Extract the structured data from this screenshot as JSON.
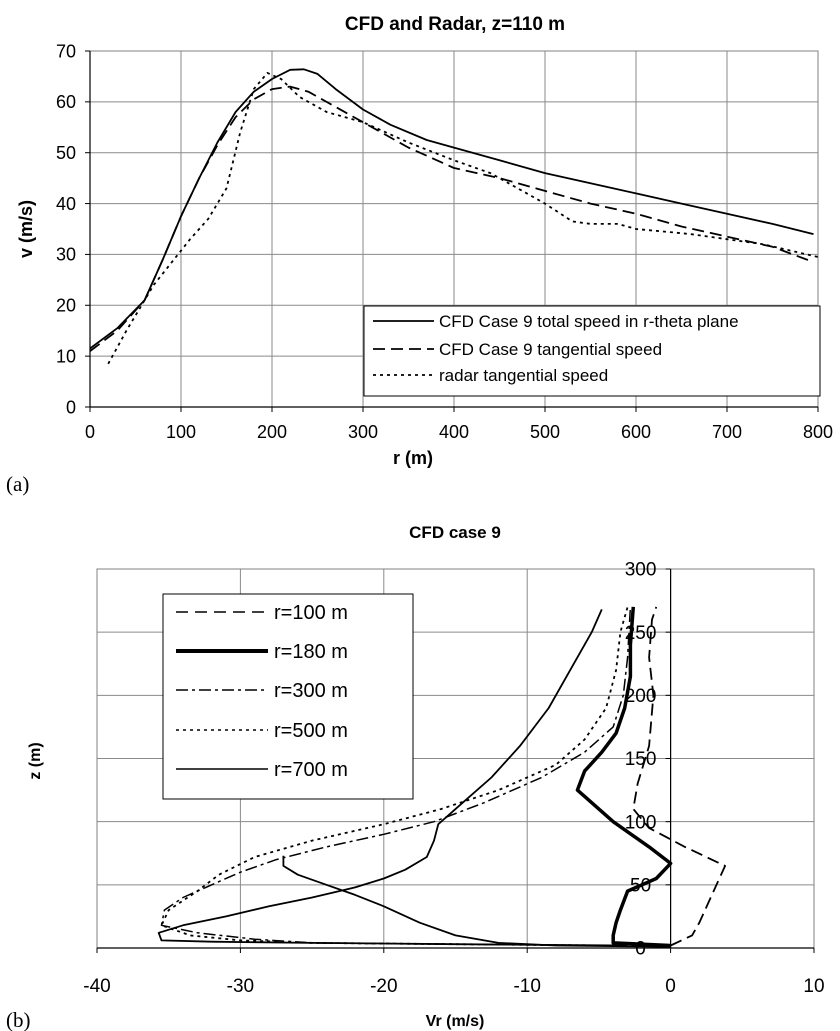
{
  "chart_data": [
    {
      "panel_label": "(a)",
      "type": "line",
      "title": "CFD and Radar, z=110 m",
      "xlabel": "r (m)",
      "ylabel": "v (m/s)",
      "xlim": [
        0,
        800
      ],
      "ylim": [
        0,
        70
      ],
      "xticks": [
        0,
        100,
        200,
        300,
        400,
        500,
        600,
        700,
        800
      ],
      "yticks": [
        0,
        10,
        20,
        30,
        40,
        50,
        60,
        70
      ],
      "grid": true,
      "legend_position": "bottom-right",
      "series": [
        {
          "name": "CFD Case 9 total speed in r-theta plane",
          "style": "solid",
          "points": [
            [
              0,
              11.5
            ],
            [
              30,
              15.5
            ],
            [
              60,
              21
            ],
            [
              80,
              29
            ],
            [
              100,
              37.5
            ],
            [
              120,
              45
            ],
            [
              140,
              52
            ],
            [
              160,
              58
            ],
            [
              180,
              62
            ],
            [
              200,
              64.5
            ],
            [
              220,
              66.3
            ],
            [
              235,
              66.4
            ],
            [
              250,
              65.5
            ],
            [
              270,
              62.5
            ],
            [
              300,
              58.5
            ],
            [
              330,
              55.5
            ],
            [
              370,
              52.5
            ],
            [
              400,
              51
            ],
            [
              450,
              48.5
            ],
            [
              500,
              46
            ],
            [
              550,
              44
            ],
            [
              600,
              42
            ],
            [
              650,
              40
            ],
            [
              700,
              38
            ],
            [
              750,
              36
            ],
            [
              795,
              34
            ]
          ]
        },
        {
          "name": "CFD Case 9 tangential speed",
          "style": "dashed",
          "points": [
            [
              0,
              11
            ],
            [
              30,
              15
            ],
            [
              60,
              21
            ],
            [
              80,
              29
            ],
            [
              100,
              37.5
            ],
            [
              120,
              45
            ],
            [
              140,
              51.5
            ],
            [
              160,
              57
            ],
            [
              180,
              60.5
            ],
            [
              200,
              62.5
            ],
            [
              220,
              63
            ],
            [
              240,
              62
            ],
            [
              260,
              60
            ],
            [
              300,
              56
            ],
            [
              350,
              51
            ],
            [
              400,
              47
            ],
            [
              450,
              45
            ],
            [
              500,
              42.5
            ],
            [
              550,
              40
            ],
            [
              600,
              38
            ],
            [
              650,
              35.5
            ],
            [
              700,
              33.5
            ],
            [
              750,
              31.5
            ],
            [
              795,
              28.5
            ]
          ]
        },
        {
          "name": "radar tangential speed",
          "style": "dotted",
          "points": [
            [
              20,
              8.5
            ],
            [
              40,
              15
            ],
            [
              55,
              19.5
            ],
            [
              70,
              24
            ],
            [
              90,
              28.5
            ],
            [
              110,
              33
            ],
            [
              130,
              37
            ],
            [
              150,
              43
            ],
            [
              165,
              54
            ],
            [
              180,
              62.5
            ],
            [
              195,
              65.7
            ],
            [
              210,
              64.5
            ],
            [
              230,
              61
            ],
            [
              260,
              58
            ],
            [
              300,
              56
            ],
            [
              350,
              52
            ],
            [
              400,
              48.5
            ],
            [
              440,
              46
            ],
            [
              470,
              43
            ],
            [
              500,
              40
            ],
            [
              530,
              36.5
            ],
            [
              550,
              36
            ],
            [
              580,
              36
            ],
            [
              600,
              35
            ],
            [
              630,
              34.5
            ],
            [
              660,
              34
            ],
            [
              700,
              33
            ],
            [
              740,
              32
            ],
            [
              800,
              29.5
            ]
          ]
        }
      ]
    },
    {
      "panel_label": "(b)",
      "type": "line",
      "title": "CFD case 9",
      "xlabel": "Vr (m/s)",
      "ylabel": "z (m)",
      "xlim": [
        -40,
        10
      ],
      "ylim": [
        0,
        300
      ],
      "xticks": [
        -40,
        -30,
        -20,
        -10,
        0,
        10
      ],
      "yticks": [
        0,
        50,
        100,
        150,
        200,
        250,
        300
      ],
      "grid": true,
      "legend_position": "top-left",
      "series": [
        {
          "name": "r=100 m",
          "style": "dashed",
          "points": [
            [
              0,
              2
            ],
            [
              1.5,
              10
            ],
            [
              2,
              20
            ],
            [
              2.6,
              35
            ],
            [
              3.2,
              50
            ],
            [
              3.8,
              65
            ],
            [
              1,
              80
            ],
            [
              -1.5,
              95
            ],
            [
              -2.6,
              110
            ],
            [
              -2.3,
              130
            ],
            [
              -1.5,
              160
            ],
            [
              -1.2,
              200
            ],
            [
              -1.5,
              230
            ],
            [
              -1.3,
              260
            ],
            [
              -1,
              270
            ]
          ]
        },
        {
          "name": "r=180 m",
          "style": "thick",
          "points": [
            [
              0,
              2
            ],
            [
              -4,
              4
            ],
            [
              -4,
              10
            ],
            [
              -3.8,
              20
            ],
            [
              -3.5,
              30
            ],
            [
              -3,
              45
            ],
            [
              -1,
              55
            ],
            [
              0,
              67
            ],
            [
              -1.5,
              80
            ],
            [
              -4,
              100
            ],
            [
              -5.5,
              115
            ],
            [
              -6.5,
              125
            ],
            [
              -6,
              140
            ],
            [
              -4.8,
              155
            ],
            [
              -3.8,
              170
            ],
            [
              -3.2,
              190
            ],
            [
              -2.8,
              215
            ],
            [
              -2.8,
              240
            ],
            [
              -2.6,
              270
            ]
          ]
        },
        {
          "name": "r=300 m",
          "style": "dashdot",
          "points": [
            [
              -4.5,
              2
            ],
            [
              -15,
              3
            ],
            [
              -25,
              4
            ],
            [
              -29,
              7
            ],
            [
              -33,
              12
            ],
            [
              -35.5,
              18
            ],
            [
              -35.3,
              30
            ],
            [
              -34,
              40
            ],
            [
              -32,
              50
            ],
            [
              -30,
              60
            ],
            [
              -27.5,
              70
            ],
            [
              -24,
              80
            ],
            [
              -20,
              90
            ],
            [
              -16.5,
              100
            ],
            [
              -13,
              115
            ],
            [
              -9,
              135
            ],
            [
              -6,
              155
            ],
            [
              -4,
              175
            ],
            [
              -3.3,
              200
            ],
            [
              -3,
              230
            ],
            [
              -2.8,
              270
            ]
          ]
        },
        {
          "name": "r=500 m",
          "style": "dotted",
          "points": [
            [
              -4.5,
              2
            ],
            [
              -15,
              3
            ],
            [
              -25,
              4
            ],
            [
              -30,
              6
            ],
            [
              -33.5,
              10
            ],
            [
              -35.5,
              18
            ],
            [
              -35,
              30
            ],
            [
              -33,
              45
            ],
            [
              -31.5,
              58
            ],
            [
              -29,
              72
            ],
            [
              -25,
              85
            ],
            [
              -20,
              98
            ],
            [
              -16,
              110
            ],
            [
              -12,
              125
            ],
            [
              -8,
              145
            ],
            [
              -6,
              165
            ],
            [
              -4.5,
              190
            ],
            [
              -3.8,
              220
            ],
            [
              -3.5,
              250
            ],
            [
              -3,
              270
            ]
          ]
        },
        {
          "name": "r=700 m",
          "style": "solid",
          "points": [
            [
              -3,
              2
            ],
            [
              -15,
              3
            ],
            [
              -25,
              4
            ],
            [
              -32,
              5
            ],
            [
              -35.5,
              6
            ],
            [
              -35.7,
              12
            ],
            [
              -34,
              18
            ],
            [
              -31,
              25
            ],
            [
              -28,
              33
            ],
            [
              -25,
              40
            ],
            [
              -22,
              48
            ],
            [
              -20,
              55
            ],
            [
              -18.5,
              62
            ],
            [
              -17,
              72
            ],
            [
              -16.5,
              85
            ],
            [
              -16.2,
              98
            ],
            [
              -14.5,
              115
            ],
            [
              -12.5,
              135
            ],
            [
              -10.5,
              160
            ],
            [
              -8.5,
              190
            ],
            [
              -7,
              220
            ],
            [
              -5.5,
              250
            ],
            [
              -4.8,
              268
            ]
          ]
        },
        {
          "name": "",
          "style": "solid",
          "points": [
            [
              -27,
              73
            ],
            [
              -27,
              65
            ],
            [
              -26,
              58
            ],
            [
              -24,
              50
            ],
            [
              -22,
              42
            ],
            [
              -20,
              33
            ],
            [
              -17.5,
              20
            ],
            [
              -15,
              10
            ],
            [
              -12,
              4
            ],
            [
              -8,
              2
            ],
            [
              -4,
              1.5
            ],
            [
              0,
              1
            ]
          ]
        }
      ]
    }
  ]
}
